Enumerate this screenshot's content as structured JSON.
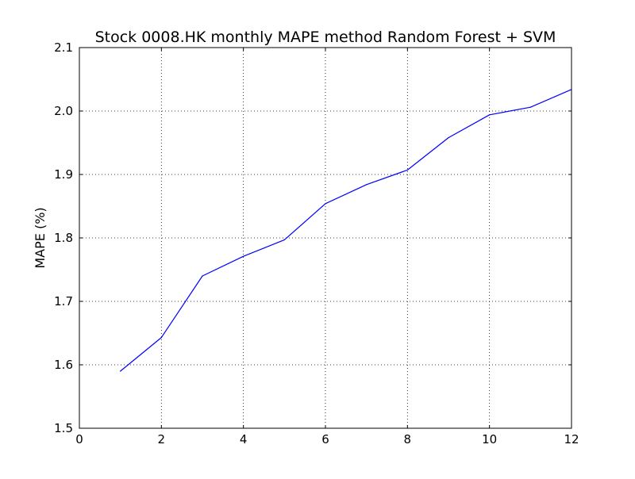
{
  "chart_data": {
    "type": "line",
    "title": "Stock 0008.HK monthly MAPE method Random Forest + SVM",
    "xlabel": "",
    "ylabel": "MAPE (%)",
    "xlim": [
      0,
      12
    ],
    "ylim": [
      1.5,
      2.1
    ],
    "xticks": [
      "0",
      "2",
      "4",
      "6",
      "8",
      "10",
      "12"
    ],
    "yticks": [
      "1.5",
      "1.6",
      "1.7",
      "1.8",
      "1.9",
      "2.0",
      "2.1"
    ],
    "grid": true,
    "legend": "none",
    "series": [
      {
        "color": "#0000ff",
        "x": [
          1,
          2,
          3,
          4,
          5,
          6,
          7,
          8,
          9,
          10,
          11,
          12
        ],
        "y": [
          1.59,
          1.643,
          1.74,
          1.771,
          1.797,
          1.854,
          1.884,
          1.907,
          1.958,
          1.994,
          2.006,
          2.034
        ]
      }
    ]
  }
}
